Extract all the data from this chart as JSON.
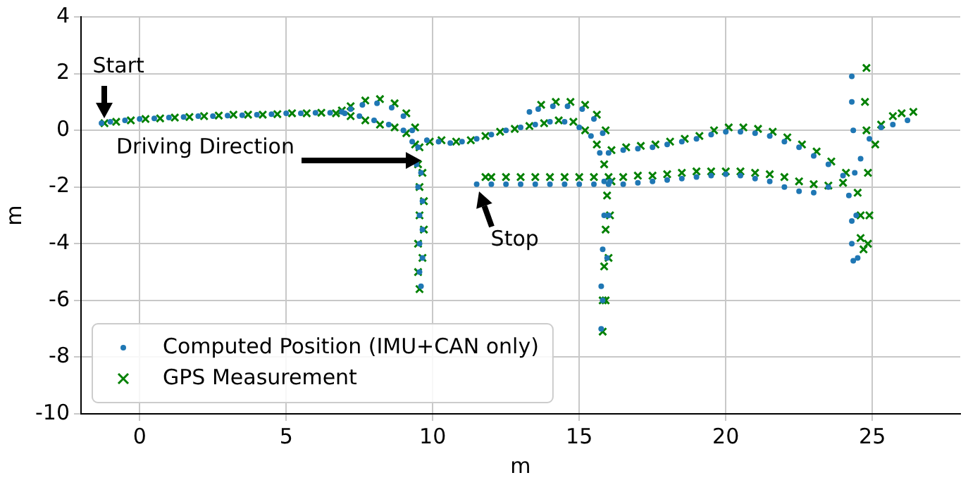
{
  "chart_data": {
    "type": "scatter",
    "xlabel": "m",
    "ylabel": "m",
    "xlim": [
      -2,
      28
    ],
    "ylim": [
      -10,
      4
    ],
    "xticks": [
      0,
      5,
      10,
      15,
      20,
      25
    ],
    "yticks": [
      -10,
      -8,
      -6,
      -4,
      -2,
      0,
      2,
      4
    ],
    "grid": true,
    "legend": "bottom left",
    "annotations": [
      {
        "text": "Start",
        "x": -1.3,
        "y": 0.25
      },
      {
        "text": "Stop",
        "x": 11.5,
        "y": -1.9
      },
      "Driving Direction"
    ],
    "series": [
      {
        "name": "Computed Position (IMU+CAN only)",
        "color": "#1f77b4",
        "marker": "circle",
        "x": [
          -1.3,
          -1,
          -0.5,
          0,
          0.5,
          1,
          1.5,
          2,
          2.5,
          3,
          3.5,
          4,
          4.5,
          5,
          5.5,
          6,
          6.5,
          7,
          7.5,
          8,
          8.5,
          9,
          9.3,
          9.45,
          9.5,
          9.55,
          9.55,
          9.55,
          9.6,
          9.65,
          9.65,
          9.65,
          9.6,
          9.5,
          9.3,
          9.0,
          8.6,
          8.1,
          7.6,
          7.2,
          6.9,
          9.8,
          10.2,
          10.6,
          11,
          11.5,
          12,
          12.5,
          13,
          13.5,
          14,
          14.5,
          15,
          15.4,
          15.7,
          15.85,
          15.85,
          15.8,
          15.75,
          15.75,
          15.8,
          15.95,
          16,
          16.05,
          16,
          15.8,
          15.5,
          15.1,
          14.6,
          14.1,
          13.6,
          13.3,
          16.5,
          17,
          17.5,
          18,
          18.5,
          19,
          19.5,
          20,
          20.5,
          21,
          21.5,
          22,
          22.5,
          23,
          23.5,
          24,
          24.2,
          24.3,
          24.3,
          24.35,
          24.5,
          24.45,
          24.4,
          24.35,
          24.3,
          24.3,
          24.6,
          24.9,
          25.3,
          25.7,
          26.2,
          23.5,
          23,
          22.5,
          22,
          21.5,
          21,
          20.5,
          20,
          19.5,
          19,
          18.5,
          18,
          17.5,
          17,
          16.5,
          16,
          15.5,
          15,
          14.5,
          14,
          13.5,
          13,
          12.5,
          12,
          11.5
        ],
        "values": [
          0.25,
          0.3,
          0.35,
          0.4,
          0.42,
          0.45,
          0.47,
          0.5,
          0.5,
          0.52,
          0.53,
          0.55,
          0.57,
          0.6,
          0.6,
          0.62,
          0.62,
          0.6,
          0.5,
          0.35,
          0.2,
          0,
          -0.4,
          -1.2,
          -2,
          -3,
          -4,
          -5,
          -5.5,
          -4.5,
          -3.5,
          -2.5,
          -1.5,
          -0.6,
          0,
          0.5,
          0.8,
          0.95,
          0.9,
          0.75,
          0.65,
          -0.35,
          -0.4,
          -0.45,
          -0.4,
          -0.3,
          -0.15,
          0,
          0.1,
          0.2,
          0.3,
          0.3,
          0.1,
          -0.2,
          -0.8,
          -1.8,
          -3,
          -4.2,
          -5.5,
          -7,
          -6,
          -4.5,
          -3,
          -1.8,
          -0.8,
          -0.1,
          0.4,
          0.75,
          0.85,
          0.85,
          0.75,
          0.65,
          -0.7,
          -0.65,
          -0.6,
          -0.5,
          -0.4,
          -0.3,
          -0.15,
          -0.05,
          -0.05,
          -0.1,
          -0.2,
          -0.4,
          -0.6,
          -0.9,
          -1.2,
          -1.6,
          -2.3,
          -3.2,
          -4,
          -4.6,
          -4.5,
          -3,
          -1.5,
          0,
          1,
          1.9,
          -1,
          -0.3,
          0.1,
          0.2,
          0.35,
          -2,
          -2.2,
          -2.15,
          -2,
          -1.8,
          -1.7,
          -1.6,
          -1.55,
          -1.6,
          -1.65,
          -1.7,
          -1.75,
          -1.8,
          -1.85,
          -1.9,
          -1.9,
          -1.9,
          -1.9,
          -1.9,
          -1.9,
          -1.9,
          -1.9,
          -1.9,
          -1.9,
          -1.9
        ]
      },
      {
        "name": "GPS Measurement",
        "color": "#008000",
        "marker": "cross",
        "x": [
          -1.2,
          -0.8,
          -0.3,
          0.2,
          0.7,
          1.2,
          1.7,
          2.2,
          2.7,
          3.2,
          3.7,
          4.2,
          4.7,
          5.2,
          5.7,
          6.2,
          6.7,
          7.2,
          7.7,
          8.2,
          8.7,
          9.1,
          9.4,
          9.5,
          9.55,
          9.55,
          9.5,
          9.5,
          9.55,
          9.65,
          9.7,
          9.7,
          9.65,
          9.55,
          9.4,
          9.1,
          8.7,
          8.2,
          7.7,
          7.2,
          6.9,
          9.9,
          10.3,
          10.8,
          11.3,
          11.8,
          12.3,
          12.8,
          13.3,
          13.8,
          14.3,
          14.8,
          15.2,
          15.6,
          15.85,
          15.95,
          15.9,
          15.85,
          15.8,
          15.8,
          15.9,
          16,
          16.05,
          16.1,
          16.1,
          15.9,
          15.6,
          15.2,
          14.7,
          14.2,
          13.7,
          16.6,
          17.1,
          17.6,
          18.1,
          18.6,
          19.1,
          19.6,
          20.1,
          20.6,
          21.1,
          21.6,
          22.1,
          22.6,
          23.1,
          23.6,
          24.1,
          24.5,
          24.6,
          24.6,
          24.7,
          24.85,
          24.9,
          24.85,
          24.8,
          24.75,
          24.8,
          25.1,
          25.3,
          25.7,
          26,
          26.4,
          24,
          23.5,
          23,
          22.5,
          22,
          21.5,
          21,
          20.5,
          20,
          19.5,
          19,
          18.5,
          18,
          17.5,
          17,
          16.5,
          16,
          15.5,
          15,
          14.5,
          14,
          13.5,
          13,
          12.5,
          12,
          11.8
        ],
        "values": [
          0.25,
          0.3,
          0.35,
          0.4,
          0.42,
          0.45,
          0.47,
          0.5,
          0.52,
          0.55,
          0.55,
          0.55,
          0.57,
          0.6,
          0.6,
          0.62,
          0.6,
          0.5,
          0.35,
          0.2,
          0.1,
          -0.1,
          -0.5,
          -1.2,
          -2,
          -3,
          -4,
          -5,
          -5.6,
          -4.5,
          -3.5,
          -2.5,
          -1.5,
          -0.6,
          0.1,
          0.6,
          0.95,
          1.1,
          1.05,
          0.85,
          0.7,
          -0.4,
          -0.35,
          -0.4,
          -0.35,
          -0.2,
          -0.05,
          0.05,
          0.15,
          0.25,
          0.35,
          0.3,
          0,
          -0.5,
          -1.2,
          -2.3,
          -3.5,
          -4.8,
          -6,
          -7.1,
          -6,
          -4.5,
          -3,
          -1.8,
          -0.7,
          0,
          0.55,
          0.9,
          1,
          1,
          0.9,
          -0.6,
          -0.55,
          -0.5,
          -0.4,
          -0.3,
          -0.2,
          0,
          0.1,
          0.1,
          0.05,
          -0.05,
          -0.25,
          -0.5,
          -0.75,
          -1.1,
          -1.5,
          -2.2,
          -3,
          -3.8,
          -4.2,
          -4,
          -3,
          -1.5,
          0,
          1,
          2.2,
          -0.5,
          0.2,
          0.5,
          0.6,
          0.65,
          -1.85,
          -1.95,
          -1.9,
          -1.8,
          -1.65,
          -1.55,
          -1.5,
          -1.45,
          -1.45,
          -1.45,
          -1.45,
          -1.5,
          -1.55,
          -1.6,
          -1.6,
          -1.65,
          -1.65,
          -1.65,
          -1.65,
          -1.65,
          -1.65,
          -1.65,
          -1.65,
          -1.65,
          -1.65,
          -1.65
        ]
      }
    ]
  }
}
